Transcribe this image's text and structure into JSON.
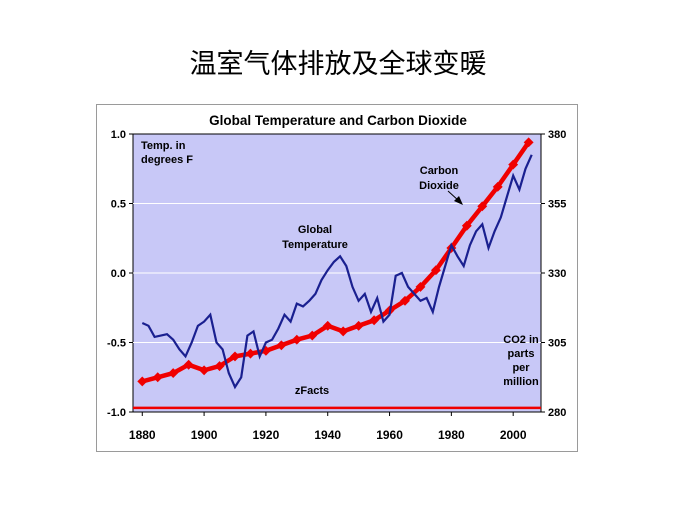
{
  "slide_title": "温室气体排放及全球变暖",
  "chart_data": {
    "type": "line",
    "title": "Global Temperature and Carbon Dioxide",
    "left_axis": {
      "label": "Temp. in degrees F",
      "ylim": [
        -1.0,
        1.0
      ],
      "ticks": [
        "1.0",
        "0.5",
        "0.0",
        "-0.5",
        "-1.0"
      ]
    },
    "right_axis": {
      "label": "CO2 in parts per million",
      "ylim": [
        280,
        380
      ],
      "ticks": [
        "380",
        "355",
        "330",
        "305",
        "280"
      ]
    },
    "x_axis": {
      "xlim": [
        1877,
        2009
      ],
      "ticks": [
        "1880",
        "1900",
        "1920",
        "1940",
        "1960",
        "1980",
        "2000"
      ]
    },
    "grid": "horizontal",
    "background_color": "#c8c8f7",
    "annotations": {
      "temperature": "Global Temperature",
      "co2": "Carbon Dioxide",
      "source": "zFacts"
    },
    "series": [
      {
        "name": "Global Temperature",
        "axis": "left",
        "color": "#1a2090",
        "x": [
          1880,
          1882,
          1884,
          1886,
          1888,
          1890,
          1892,
          1894,
          1896,
          1898,
          1900,
          1902,
          1904,
          1906,
          1908,
          1910,
          1912,
          1914,
          1916,
          1918,
          1920,
          1922,
          1924,
          1926,
          1928,
          1930,
          1932,
          1934,
          1936,
          1938,
          1940,
          1942,
          1944,
          1946,
          1948,
          1950,
          1952,
          1954,
          1956,
          1958,
          1960,
          1962,
          1964,
          1966,
          1968,
          1970,
          1972,
          1974,
          1976,
          1978,
          1980,
          1982,
          1984,
          1986,
          1988,
          1990,
          1992,
          1994,
          1996,
          1998,
          2000,
          2002,
          2004,
          2006
        ],
        "y": [
          -0.36,
          -0.38,
          -0.46,
          -0.45,
          -0.44,
          -0.48,
          -0.55,
          -0.6,
          -0.5,
          -0.38,
          -0.35,
          -0.3,
          -0.5,
          -0.55,
          -0.72,
          -0.82,
          -0.75,
          -0.45,
          -0.42,
          -0.6,
          -0.5,
          -0.48,
          -0.4,
          -0.3,
          -0.35,
          -0.22,
          -0.24,
          -0.2,
          -0.15,
          -0.05,
          0.02,
          0.08,
          0.12,
          0.05,
          -0.1,
          -0.2,
          -0.15,
          -0.28,
          -0.18,
          -0.35,
          -0.3,
          -0.02,
          0.0,
          -0.1,
          -0.15,
          -0.2,
          -0.18,
          -0.28,
          -0.1,
          0.05,
          0.2,
          0.12,
          0.05,
          0.2,
          0.3,
          0.35,
          0.18,
          0.3,
          0.4,
          0.55,
          0.7,
          0.6,
          0.75,
          0.85
        ]
      },
      {
        "name": "Carbon Dioxide",
        "axis": "right",
        "color": "#f00000",
        "x": [
          1880,
          1885,
          1890,
          1895,
          1900,
          1905,
          1910,
          1915,
          1920,
          1925,
          1930,
          1935,
          1940,
          1945,
          1950,
          1955,
          1960,
          1965,
          1970,
          1975,
          1980,
          1985,
          1990,
          1995,
          2000,
          2005
        ],
        "y": [
          291,
          292.5,
          294,
          297,
          295,
          296.5,
          300,
          301,
          302,
          304,
          306,
          307.5,
          311,
          309,
          311,
          313,
          316.5,
          320,
          325,
          331,
          339,
          347,
          354,
          361,
          369,
          377
        ]
      }
    ],
    "bottom_line": {
      "color": "#f00000",
      "y_right": 281.5
    }
  }
}
